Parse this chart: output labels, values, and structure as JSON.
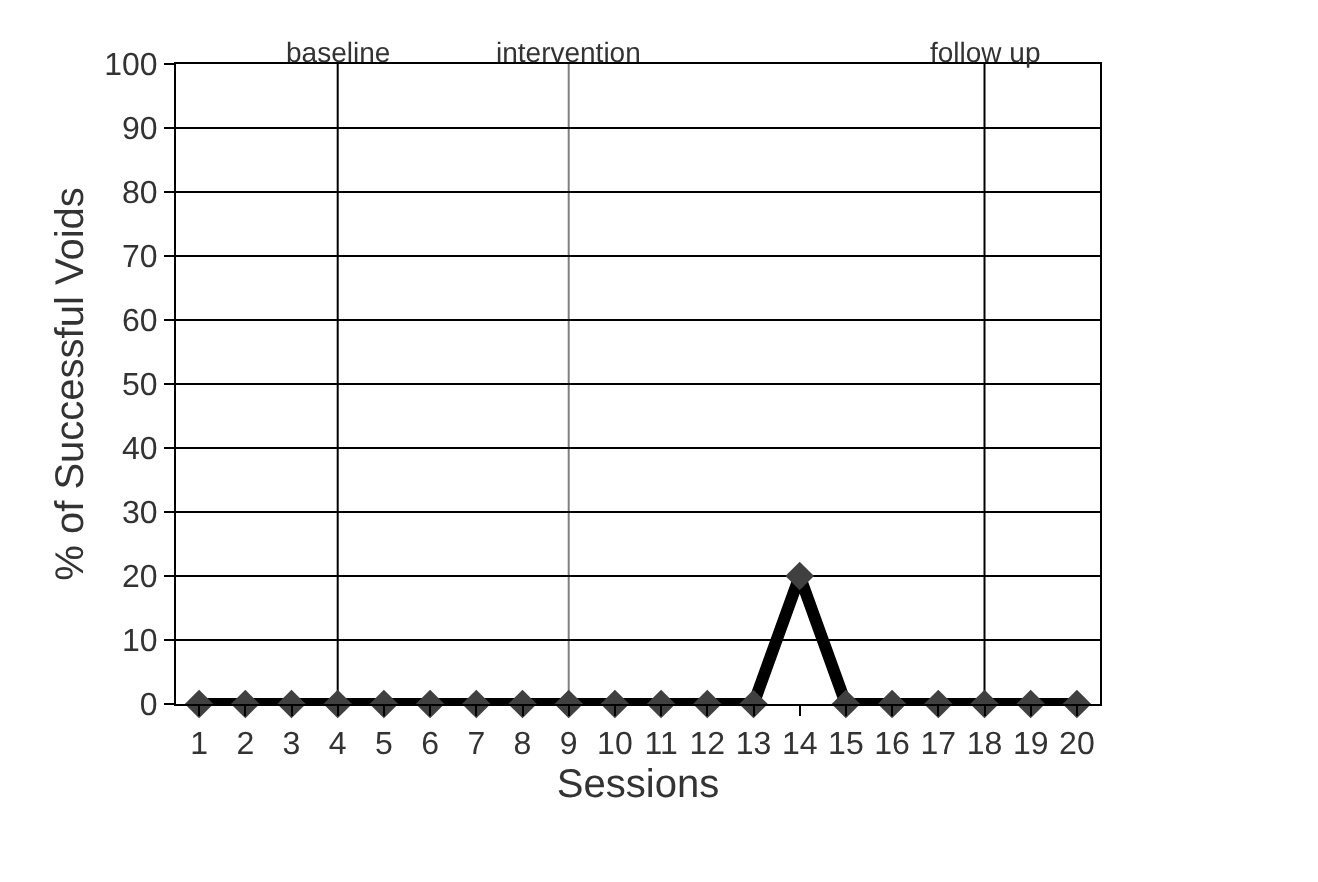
{
  "chart_data": {
    "type": "line",
    "xlabel": "Sessions",
    "ylabel": "% of Successful Voids",
    "x": [
      1,
      2,
      3,
      4,
      5,
      6,
      7,
      8,
      9,
      10,
      11,
      12,
      13,
      14,
      15,
      16,
      17,
      18,
      19,
      20
    ],
    "series": [
      {
        "color": "#000000",
        "values": [
          0,
          0,
          0,
          0,
          0,
          0,
          0,
          0,
          0,
          0,
          0,
          0,
          0,
          20,
          0,
          0,
          0,
          0,
          0,
          0
        ]
      }
    ],
    "xlim": [
      0.5,
      20.5
    ],
    "xticks": [
      1,
      2,
      3,
      4,
      5,
      6,
      7,
      8,
      9,
      10,
      11,
      12,
      13,
      14,
      15,
      16,
      17,
      18,
      19,
      20
    ],
    "ylim": [
      0,
      100
    ],
    "yticks": [
      0,
      10,
      20,
      30,
      40,
      50,
      60,
      70,
      80,
      90,
      100
    ],
    "grid": "y",
    "legend": false,
    "marker": "diamond",
    "line_style": "solid",
    "ref_lines": [
      {
        "axis": "x",
        "value": 4,
        "label": "baseline",
        "color": "#000000"
      },
      {
        "axis": "x",
        "value": 9,
        "label": "intervention",
        "color": "#808080"
      },
      {
        "axis": "x",
        "value": 18,
        "label": "follow up",
        "color": "#000000"
      }
    ]
  }
}
